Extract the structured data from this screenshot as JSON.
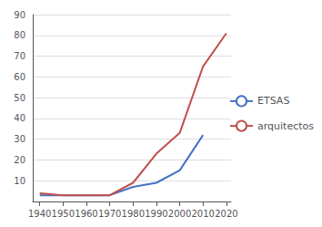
{
  "chart_data": {
    "type": "line",
    "x": [
      1940,
      1950,
      1960,
      1970,
      1980,
      1990,
      2000,
      2010,
      2020
    ],
    "series": [
      {
        "name": "ETSAS",
        "color": "#4472C4",
        "values": [
          3,
          3,
          3,
          3,
          7,
          9,
          15,
          32,
          null
        ]
      },
      {
        "name": "arquitectos",
        "color": "#C0504D",
        "values": [
          4,
          3,
          3,
          3,
          9,
          23,
          33,
          65,
          81
        ]
      }
    ],
    "xlim": [
      1937,
      2022
    ],
    "xticks": [
      1940,
      1950,
      1960,
      1970,
      1980,
      1990,
      2000,
      2010,
      2020
    ],
    "ylim": [
      0,
      90
    ],
    "yticks": [
      10,
      20,
      30,
      40,
      50,
      60,
      70,
      80,
      90
    ],
    "grid": true,
    "legend": "right"
  }
}
